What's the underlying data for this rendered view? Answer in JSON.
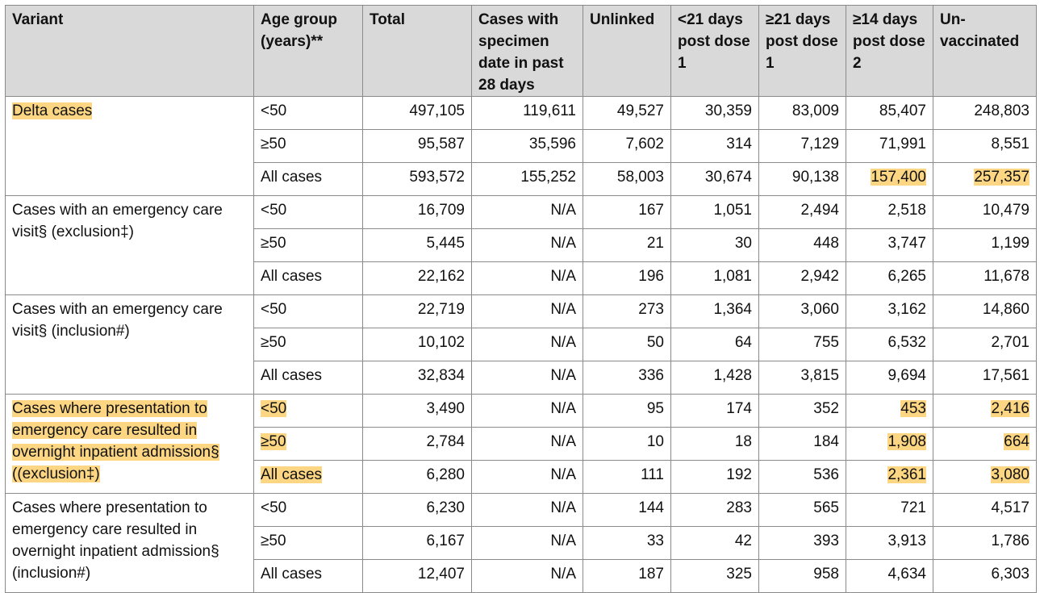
{
  "table": {
    "headers": [
      "Variant",
      "Age group (years)**",
      "Total",
      "Cases with specimen date in past 28 days",
      "Unlinked",
      "<21 days post dose 1",
      "≥21 days post dose 1",
      "≥14 days post dose 2",
      "Un-vaccinated"
    ],
    "groups": [
      {
        "variant": "Delta cases",
        "rows": [
          {
            "age": "<50",
            "cells": [
              "497,105",
              "119,611",
              "49,527",
              "30,359",
              "83,009",
              "85,407",
              "248,803"
            ]
          },
          {
            "age": "≥50",
            "cells": [
              "95,587",
              "35,596",
              "7,602",
              "314",
              "7,129",
              "71,991",
              "8,551"
            ]
          },
          {
            "age": "All cases",
            "cells": [
              "593,572",
              "155,252",
              "58,003",
              "30,674",
              "90,138",
              "157,400",
              "257,357"
            ]
          }
        ]
      },
      {
        "variant": "Cases with an emergency care visit§ (exclusion‡)",
        "rows": [
          {
            "age": "<50",
            "cells": [
              "16,709",
              "N/A",
              "167",
              "1,051",
              "2,494",
              "2,518",
              "10,479"
            ]
          },
          {
            "age": "≥50",
            "cells": [
              "5,445",
              "N/A",
              "21",
              "30",
              "448",
              "3,747",
              "1,199"
            ]
          },
          {
            "age": "All cases",
            "cells": [
              "22,162",
              "N/A",
              "196",
              "1,081",
              "2,942",
              "6,265",
              "11,678"
            ]
          }
        ]
      },
      {
        "variant": "Cases with an emergency care visit§ (inclusion#)",
        "rows": [
          {
            "age": "<50",
            "cells": [
              "22,719",
              "N/A",
              "273",
              "1,364",
              "3,060",
              "3,162",
              "14,860"
            ]
          },
          {
            "age": "≥50",
            "cells": [
              "10,102",
              "N/A",
              "50",
              "64",
              "755",
              "6,532",
              "2,701"
            ]
          },
          {
            "age": "All cases",
            "cells": [
              "32,834",
              "N/A",
              "336",
              "1,428",
              "3,815",
              "9,694",
              "17,561"
            ]
          }
        ]
      },
      {
        "variant": "Cases where presentation to emergency care resulted in overnight inpatient admission§ ((exclusion‡)",
        "rows": [
          {
            "age": "<50",
            "cells": [
              "3,490",
              "N/A",
              "95",
              "174",
              "352",
              "453",
              "2,416"
            ]
          },
          {
            "age": "≥50",
            "cells": [
              "2,784",
              "N/A",
              "10",
              "18",
              "184",
              "1,908",
              "664"
            ]
          },
          {
            "age": "All cases",
            "cells": [
              "6,280",
              "N/A",
              "111",
              "192",
              "536",
              "2,361",
              "3,080"
            ]
          }
        ]
      },
      {
        "variant": "Cases where presentation to emergency care resulted in overnight inpatient admission§ (inclusion#)",
        "rows": [
          {
            "age": "<50",
            "cells": [
              "6,230",
              "N/A",
              "144",
              "283",
              "565",
              "721",
              "4,517"
            ]
          },
          {
            "age": "≥50",
            "cells": [
              "6,167",
              "N/A",
              "33",
              "42",
              "393",
              "3,913",
              "1,786"
            ]
          },
          {
            "age": "All cases",
            "cells": [
              "12,407",
              "N/A",
              "187",
              "325",
              "958",
              "4,634",
              "6,303"
            ]
          }
        ]
      }
    ]
  }
}
